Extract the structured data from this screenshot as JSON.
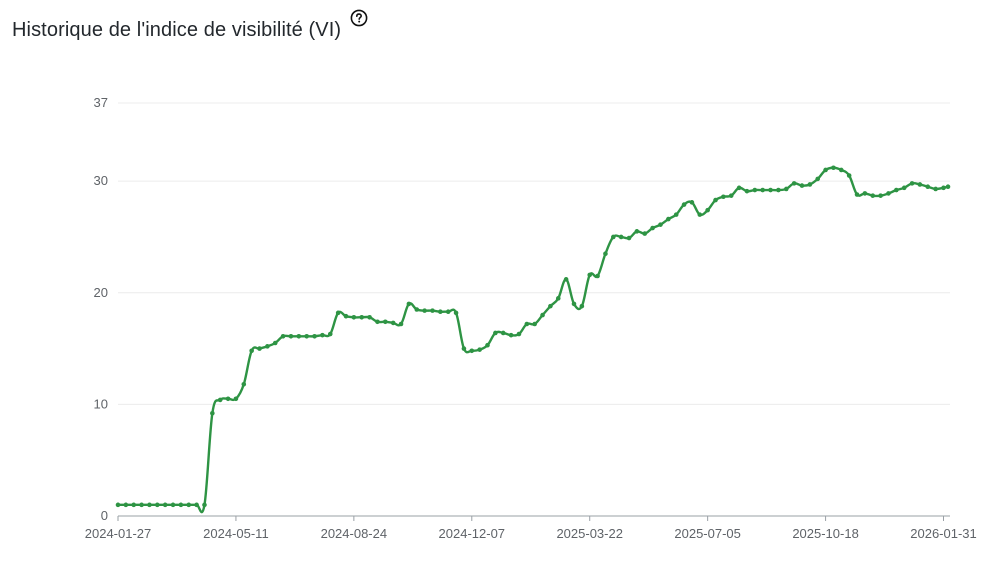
{
  "header": {
    "title": "Historique de l'indice de visibilité (VI)",
    "help_icon": "question-circle-icon"
  },
  "chart_data": {
    "type": "line",
    "title": "Historique de l'indice de visibilité (VI)",
    "xlabel": "",
    "ylabel": "",
    "ylim": [
      0,
      37
    ],
    "yticks": [
      0,
      10,
      20,
      30,
      37
    ],
    "xlim": [
      "2024-01-27",
      "2026-02-04"
    ],
    "xticks": [
      "2024-01-27",
      "2024-05-11",
      "2024-08-24",
      "2024-12-07",
      "2025-03-22",
      "2025-07-05",
      "2025-10-18",
      "2026-01-31"
    ],
    "grid": true,
    "line_color": "#2e9444",
    "series": [
      {
        "x": [
          "2024-01-27",
          "2024-02-03",
          "2024-02-10",
          "2024-02-17",
          "2024-02-24",
          "2024-03-02",
          "2024-03-09",
          "2024-03-16",
          "2024-03-23",
          "2024-03-30",
          "2024-04-06",
          "2024-04-13",
          "2024-04-20",
          "2024-04-27",
          "2024-05-04",
          "2024-05-11",
          "2024-05-18",
          "2024-05-25",
          "2024-06-01",
          "2024-06-08",
          "2024-06-15",
          "2024-06-22",
          "2024-06-29",
          "2024-07-06",
          "2024-07-13",
          "2024-07-20",
          "2024-07-27",
          "2024-08-03",
          "2024-08-10",
          "2024-08-17",
          "2024-08-24",
          "2024-08-31",
          "2024-09-07",
          "2024-09-14",
          "2024-09-21",
          "2024-09-28",
          "2024-10-05",
          "2024-10-12",
          "2024-10-19",
          "2024-10-26",
          "2024-11-02",
          "2024-11-09",
          "2024-11-16",
          "2024-11-23",
          "2024-11-30",
          "2024-12-07",
          "2024-12-14",
          "2024-12-21",
          "2024-12-28",
          "2025-01-04",
          "2025-01-11",
          "2025-01-18",
          "2025-01-25",
          "2025-02-01",
          "2025-02-08",
          "2025-02-15",
          "2025-02-22",
          "2025-03-01",
          "2025-03-08",
          "2025-03-15",
          "2025-03-22",
          "2025-03-29",
          "2025-04-05",
          "2025-04-12",
          "2025-04-19",
          "2025-04-26",
          "2025-05-03",
          "2025-05-10",
          "2025-05-17",
          "2025-05-24",
          "2025-05-31",
          "2025-06-07",
          "2025-06-14",
          "2025-06-21",
          "2025-06-28",
          "2025-07-05",
          "2025-07-12",
          "2025-07-19",
          "2025-07-26",
          "2025-08-02",
          "2025-08-09",
          "2025-08-16",
          "2025-08-23",
          "2025-08-30",
          "2025-09-06",
          "2025-09-13",
          "2025-09-20",
          "2025-09-27",
          "2025-10-04",
          "2025-10-11",
          "2025-10-18",
          "2025-10-25",
          "2025-11-01",
          "2025-11-08",
          "2025-11-15",
          "2025-11-22",
          "2025-11-29",
          "2025-12-06",
          "2025-12-13",
          "2025-12-20",
          "2025-12-27",
          "2026-01-03",
          "2026-01-10",
          "2026-01-17",
          "2026-01-24",
          "2026-01-31",
          "2026-02-04"
        ],
        "y": [
          1.0,
          1.0,
          1.0,
          1.0,
          1.0,
          1.0,
          1.0,
          1.0,
          1.0,
          1.0,
          1.0,
          1.0,
          9.2,
          10.4,
          10.5,
          10.5,
          11.8,
          14.8,
          15.0,
          15.2,
          15.5,
          16.1,
          16.1,
          16.1,
          16.1,
          16.1,
          16.2,
          16.3,
          18.2,
          17.9,
          17.8,
          17.8,
          17.8,
          17.4,
          17.4,
          17.3,
          17.2,
          19.0,
          18.5,
          18.4,
          18.4,
          18.3,
          18.3,
          18.2,
          15.0,
          14.8,
          14.9,
          15.3,
          16.4,
          16.4,
          16.2,
          16.3,
          17.2,
          17.2,
          18.0,
          18.8,
          19.5,
          21.2,
          19.0,
          18.8,
          21.6,
          21.5,
          23.5,
          25.0,
          25.0,
          24.9,
          25.5,
          25.3,
          25.8,
          26.1,
          26.6,
          27.0,
          27.9,
          28.1,
          27.0,
          27.4,
          28.3,
          28.6,
          28.7,
          29.4,
          29.1,
          29.2,
          29.2,
          29.2,
          29.2,
          29.3,
          29.8,
          29.6,
          29.7,
          30.2,
          31.0,
          31.2,
          31.0,
          30.5,
          28.8,
          28.9,
          28.7,
          28.7,
          28.9,
          29.2,
          29.4,
          29.8,
          29.7,
          29.5,
          29.3,
          29.4,
          29.5
        ]
      }
    ]
  }
}
